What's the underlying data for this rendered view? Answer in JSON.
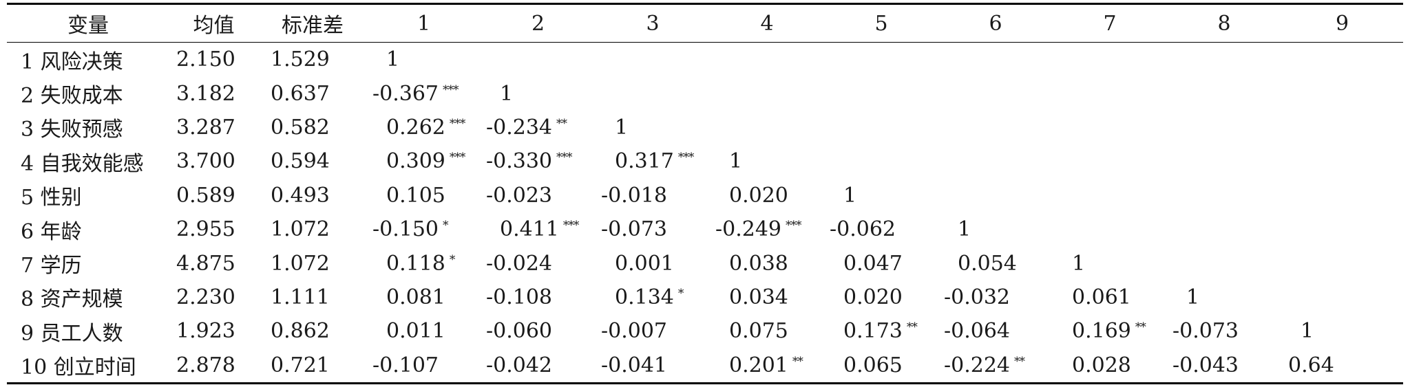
{
  "table": {
    "headers": [
      "变量",
      "均值",
      "标准差",
      "1",
      "2",
      "3",
      "4",
      "5",
      "6",
      "7",
      "8",
      "9"
    ],
    "rows": [
      {
        "name": "1 风险决策",
        "mean": "2.150",
        "sd": "1.529",
        "cells": [
          {
            "v": "1",
            "s": ""
          }
        ]
      },
      {
        "name": "2 失败成本",
        "mean": "3.182",
        "sd": "0.637",
        "cells": [
          {
            "v": "-0.367",
            "s": "***"
          },
          {
            "v": "1",
            "s": ""
          }
        ]
      },
      {
        "name": "3 失败预感",
        "mean": "3.287",
        "sd": "0.582",
        "cells": [
          {
            "v": "0.262",
            "s": "***"
          },
          {
            "v": "-0.234",
            "s": "**"
          },
          {
            "v": "1",
            "s": ""
          }
        ]
      },
      {
        "name": "4 自我效能感",
        "mean": "3.700",
        "sd": "0.594",
        "cells": [
          {
            "v": "0.309",
            "s": "***"
          },
          {
            "v": "-0.330",
            "s": "***"
          },
          {
            "v": "0.317",
            "s": "***"
          },
          {
            "v": "1",
            "s": ""
          }
        ]
      },
      {
        "name": "5 性别",
        "mean": "0.589",
        "sd": "0.493",
        "cells": [
          {
            "v": "0.105",
            "s": ""
          },
          {
            "v": "-0.023",
            "s": ""
          },
          {
            "v": "-0.018",
            "s": ""
          },
          {
            "v": "0.020",
            "s": ""
          },
          {
            "v": "1",
            "s": ""
          }
        ]
      },
      {
        "name": "6 年龄",
        "mean": "2.955",
        "sd": "1.072",
        "cells": [
          {
            "v": "-0.150",
            "s": "*"
          },
          {
            "v": "0.411",
            "s": "***"
          },
          {
            "v": "-0.073",
            "s": ""
          },
          {
            "v": "-0.249",
            "s": "***"
          },
          {
            "v": "-0.062",
            "s": ""
          },
          {
            "v": "1",
            "s": ""
          }
        ]
      },
      {
        "name": "7 学历",
        "mean": "4.875",
        "sd": "1.072",
        "cells": [
          {
            "v": "0.118",
            "s": "*"
          },
          {
            "v": "-0.024",
            "s": ""
          },
          {
            "v": "0.001",
            "s": ""
          },
          {
            "v": "0.038",
            "s": ""
          },
          {
            "v": "0.047",
            "s": ""
          },
          {
            "v": "0.054",
            "s": ""
          },
          {
            "v": "1",
            "s": ""
          }
        ]
      },
      {
        "name": "8 资产规模",
        "mean": "2.230",
        "sd": "1.111",
        "cells": [
          {
            "v": "0.081",
            "s": ""
          },
          {
            "v": "-0.108",
            "s": ""
          },
          {
            "v": "0.134",
            "s": "*"
          },
          {
            "v": "0.034",
            "s": ""
          },
          {
            "v": "0.020",
            "s": ""
          },
          {
            "v": "-0.032",
            "s": ""
          },
          {
            "v": "0.061",
            "s": ""
          },
          {
            "v": "1",
            "s": ""
          }
        ]
      },
      {
        "name": "9 员工人数",
        "mean": "1.923",
        "sd": "0.862",
        "cells": [
          {
            "v": "0.011",
            "s": ""
          },
          {
            "v": "-0.060",
            "s": ""
          },
          {
            "v": "-0.007",
            "s": ""
          },
          {
            "v": "0.075",
            "s": ""
          },
          {
            "v": "0.173",
            "s": "**"
          },
          {
            "v": "-0.064",
            "s": ""
          },
          {
            "v": "0.169",
            "s": "**"
          },
          {
            "v": "-0.073",
            "s": ""
          },
          {
            "v": "1",
            "s": ""
          }
        ]
      },
      {
        "name": "10 创立时间",
        "mean": "2.878",
        "sd": "0.721",
        "cells": [
          {
            "v": "-0.107",
            "s": ""
          },
          {
            "v": "-0.042",
            "s": ""
          },
          {
            "v": "-0.041",
            "s": ""
          },
          {
            "v": "0.201",
            "s": "**"
          },
          {
            "v": "0.065",
            "s": ""
          },
          {
            "v": "-0.224",
            "s": "**"
          },
          {
            "v": "0.028",
            "s": ""
          },
          {
            "v": "-0.043",
            "s": ""
          },
          {
            "v": "0.64",
            "s": ""
          }
        ]
      }
    ]
  }
}
